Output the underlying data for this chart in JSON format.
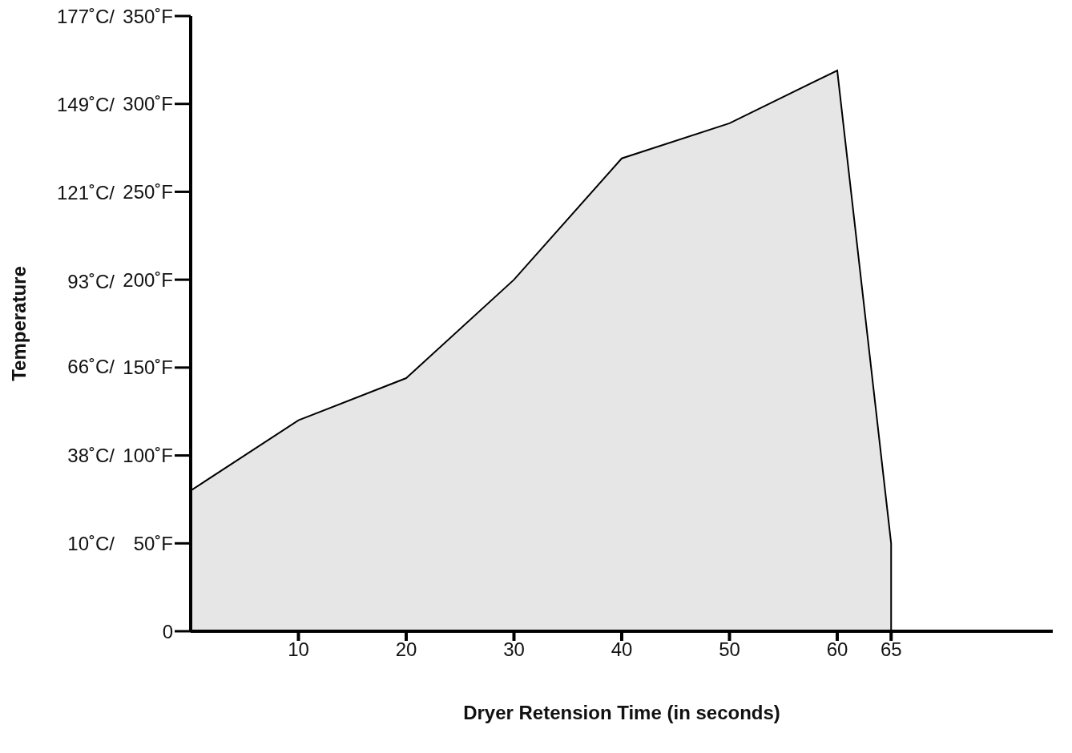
{
  "chart_data": {
    "type": "area",
    "xlabel": "Dryer Retension Time (in seconds)",
    "ylabel": "Temperature",
    "x": [
      0,
      10,
      20,
      30,
      40,
      50,
      60,
      65,
      65
    ],
    "series": [
      {
        "color": "#e6e6e6",
        "axis": "y2",
        "values": [
          80,
          120,
          144,
          200,
          269,
          289,
          319,
          50,
          0
        ]
      }
    ],
    "xlim": [
      0,
      80
    ],
    "xticks": [
      10,
      20,
      30,
      40,
      50,
      60,
      65
    ],
    "ylim": [
      -17.8,
      177
    ],
    "yticks": [
      {
        "value": 10,
        "label": "10˚C/"
      },
      {
        "value": 38,
        "label": "38˚C/"
      },
      {
        "value": 66,
        "label": "66˚C/"
      },
      {
        "value": 93,
        "label": "93˚C/"
      },
      {
        "value": 121,
        "label": "121˚C/"
      },
      {
        "value": 149,
        "label": "149˚C/"
      },
      {
        "value": 177,
        "label": "177˚C/"
      }
    ],
    "y2lim": [
      0,
      350
    ],
    "y2ticks": [
      0,
      {
        "value": 50,
        "label": "50˚F"
      },
      {
        "value": 100,
        "label": "100˚F"
      },
      {
        "value": 150,
        "label": "150˚F"
      },
      {
        "value": 200,
        "label": "200˚F"
      },
      {
        "value": 250,
        "label": "250˚F"
      },
      {
        "value": 300,
        "label": "300˚F"
      },
      {
        "value": 350,
        "label": "350˚F"
      }
    ],
    "grid": false,
    "legend": false,
    "marker": "none"
  }
}
